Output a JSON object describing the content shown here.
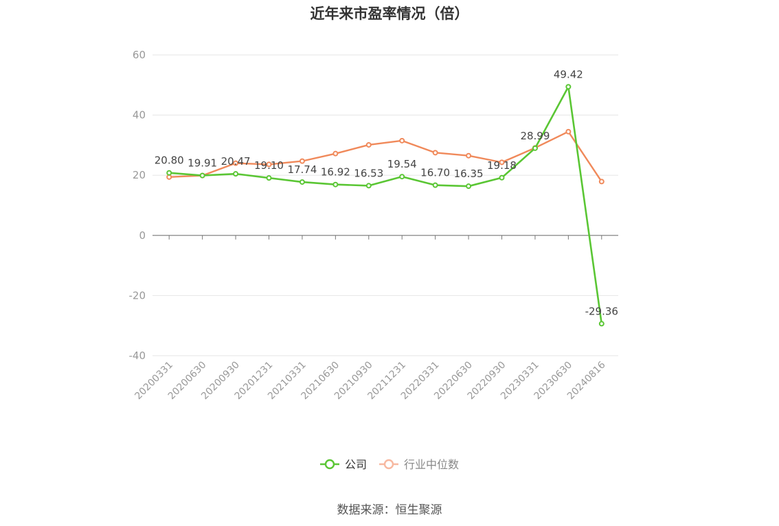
{
  "chart_data": {
    "type": "line",
    "title": "近年来市盈率情况（倍）",
    "categories": [
      "20200331",
      "20200630",
      "20200930",
      "20201231",
      "20210331",
      "20210630",
      "20210930",
      "20211231",
      "20220331",
      "20220630",
      "20220930",
      "20230331",
      "20230630",
      "20240816"
    ],
    "series": [
      {
        "name": "公司",
        "color": "#5ac634",
        "values": [
          20.8,
          19.91,
          20.47,
          19.1,
          17.74,
          16.92,
          16.53,
          19.54,
          16.7,
          16.35,
          19.18,
          28.99,
          49.42,
          -29.36
        ],
        "labels": [
          "20.80",
          "19.91",
          "20.47",
          "19.10",
          "17.74",
          "16.92",
          "16.53",
          "19.54",
          "16.70",
          "16.35",
          "19.18",
          "28.99",
          "49.42",
          "-29.36"
        ]
      },
      {
        "name": "行业中位数",
        "color": "#f0895a",
        "values": [
          19.4,
          19.9,
          24.0,
          23.6,
          24.7,
          27.2,
          30.1,
          31.5,
          27.5,
          26.5,
          24.3,
          29.1,
          34.5,
          17.9
        ]
      }
    ],
    "ylim": [
      -40,
      60
    ],
    "yticks": [
      "60",
      "40",
      "20",
      "0",
      "-20",
      "-40"
    ],
    "ytick_values": [
      60,
      40,
      20,
      0,
      -20,
      -40
    ],
    "grid": true,
    "legend": "bottom-center"
  },
  "source": "数据来源：恒生聚源"
}
